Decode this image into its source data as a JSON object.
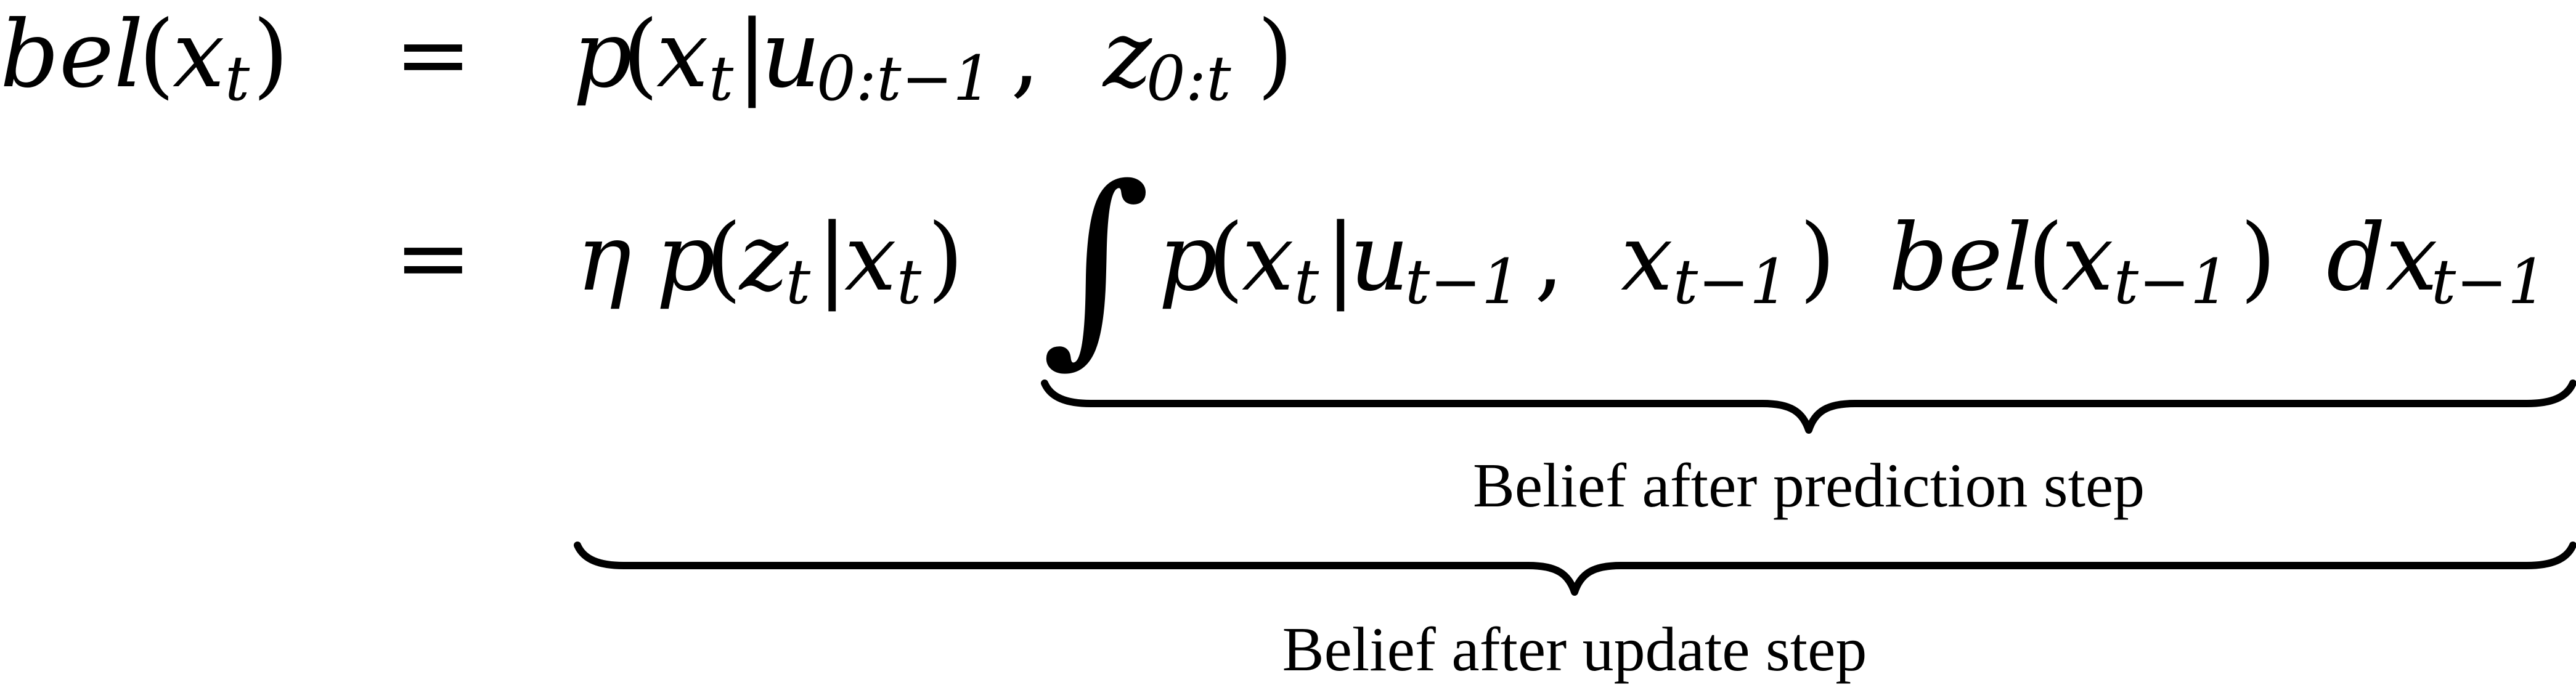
{
  "equation": {
    "line1": {
      "lhs": {
        "fn": "bel",
        "open": "(",
        "var": "x",
        "sub": "t",
        "close": ")"
      },
      "rel": "=",
      "rhs": {
        "fn": "p",
        "open": "(",
        "var_x": "x",
        "sub_x": "t",
        "bar": "|",
        "var_u": "u",
        "sub_u": "0:t−1",
        "comma": ",",
        "var_z": "z",
        "sub_z": "0:t",
        "close": ")"
      }
    },
    "line2": {
      "rel": "=",
      "eta": "η",
      "meas": {
        "fn": "p",
        "open": "(",
        "var_z": "z",
        "sub_z": "t",
        "bar": "|",
        "var_x": "x",
        "sub_x": "t",
        "close": ")"
      },
      "integral": "∫",
      "motion": {
        "fn": "p",
        "open": "(",
        "var_x": "x",
        "sub_x": "t",
        "bar": "|",
        "var_u": "u",
        "sub_u": "t−1",
        "comma": ",",
        "var_x2": "x",
        "sub_x2": "t−1",
        "close": ")"
      },
      "prior": {
        "fn": "bel",
        "open": "(",
        "var": "x",
        "sub": "t−1",
        "close": ")"
      },
      "differential": {
        "d": "dx",
        "sub": "t−1"
      }
    },
    "underbraces": {
      "prediction_label": "Belief after prediction step",
      "update_label": "Belief after update step"
    }
  }
}
